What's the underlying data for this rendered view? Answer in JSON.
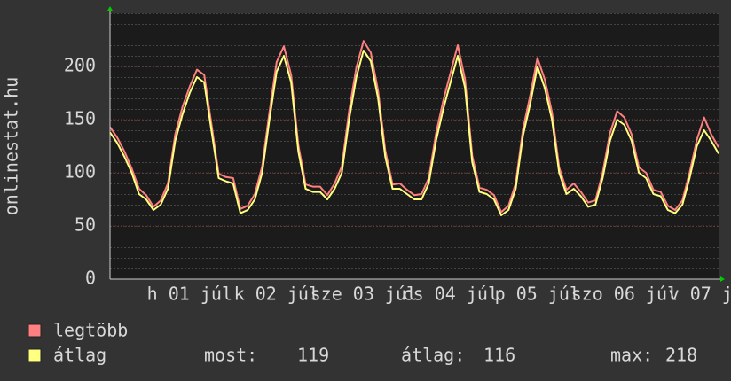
{
  "chart_data": {
    "type": "line",
    "y_label": "onlinestat.hu",
    "xlim": [
      0,
      168
    ],
    "xticks": [
      {
        "value": 22,
        "label": "h 01 júl"
      },
      {
        "value": 46,
        "label": "k 02 júl"
      },
      {
        "value": 70,
        "label": "sze 03 júl"
      },
      {
        "value": 94,
        "label": "cs 04 júl"
      },
      {
        "value": 118,
        "label": "p 05 júl"
      },
      {
        "value": 142,
        "label": "szo 06 júl"
      },
      {
        "value": 166,
        "label": "v 07 júl"
      }
    ],
    "ylim": [
      0,
      250
    ],
    "yticks": [
      0,
      50,
      100,
      150,
      200
    ],
    "grid": true,
    "x": [
      0,
      2,
      4,
      6,
      8,
      10,
      12,
      14,
      16,
      18,
      20,
      22,
      24,
      26,
      28,
      30,
      32,
      34,
      36,
      38,
      40,
      42,
      44,
      46,
      48,
      50,
      52,
      54,
      56,
      58,
      60,
      62,
      64,
      66,
      68,
      70,
      72,
      74,
      76,
      78,
      80,
      82,
      84,
      86,
      88,
      90,
      92,
      94,
      96,
      98,
      100,
      102,
      104,
      106,
      108,
      110,
      112,
      114,
      116,
      118,
      120,
      122,
      124,
      126,
      128,
      130,
      132,
      134,
      136,
      138,
      140,
      142,
      144,
      146,
      148,
      150,
      152,
      154,
      156,
      158,
      160,
      162,
      164,
      166,
      168
    ],
    "series": [
      {
        "name": "legtöbb",
        "color": "#ff8080",
        "values": [
          143,
          133,
          120,
          104,
          85,
          79,
          68,
          74,
          90,
          136,
          162,
          181,
          197,
          192,
          146,
          99,
          96,
          95,
          66,
          69,
          80,
          106,
          157,
          204,
          219,
          192,
          126,
          89,
          87,
          87,
          79,
          90,
          106,
          158,
          199,
          224,
          213,
          177,
          121,
          89,
          90,
          84,
          79,
          80,
          95,
          137,
          168,
          194,
          220,
          188,
          116,
          86,
          84,
          79,
          63,
          69,
          90,
          141,
          173,
          208,
          188,
          157,
          105,
          84,
          90,
          82,
          72,
          74,
          100,
          137,
          158,
          152,
          136,
          105,
          100,
          84,
          82,
          69,
          65,
          74,
          100,
          131,
          152,
          136,
          124
        ]
      },
      {
        "name": "átlag",
        "color": "#ffff80",
        "values": [
          138,
          128,
          115,
          100,
          80,
          75,
          65,
          70,
          85,
          130,
          155,
          175,
          190,
          185,
          140,
          95,
          92,
          90,
          62,
          65,
          75,
          100,
          150,
          195,
          210,
          185,
          120,
          85,
          82,
          82,
          75,
          85,
          100,
          150,
          190,
          215,
          205,
          170,
          115,
          85,
          85,
          80,
          75,
          75,
          90,
          130,
          160,
          185,
          210,
          180,
          110,
          82,
          80,
          75,
          60,
          65,
          85,
          135,
          165,
          200,
          180,
          150,
          100,
          80,
          85,
          78,
          68,
          70,
          95,
          130,
          150,
          145,
          130,
          100,
          95,
          80,
          78,
          65,
          62,
          70,
          95,
          125,
          140,
          130,
          118
        ]
      }
    ],
    "stats": [
      {
        "label": "most:",
        "value": 119
      },
      {
        "label": "átlag:",
        "value": 116
      },
      {
        "label": "max:",
        "value": 218
      }
    ]
  }
}
